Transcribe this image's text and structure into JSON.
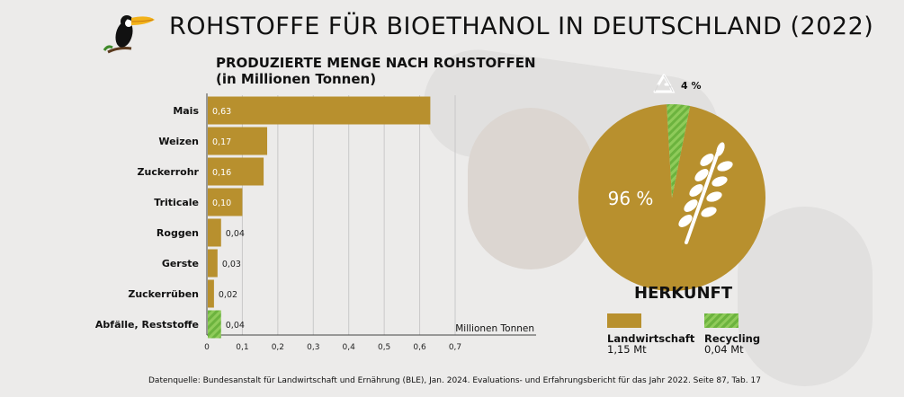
{
  "title": "ROHSTOFFE FÜR BIOETHANOL IN DEUTSCHLAND (2022)",
  "subtitle_line1": "PRODUZIERTE MENGE NACH ROHSTOFFEN",
  "subtitle_line2": "(in Millionen Tonnen)",
  "source": "Datenquelle: Bundesanstalt für Landwirtschaft und Ernährung (BLE), Jan. 2024. Evaluations- und Erfahrungsbericht für das Jahr 2022. Seite 87, Tab. 17",
  "colors": {
    "gold": "#b8902e",
    "green": "#6cb33e",
    "green_light": "#8fcb5a"
  },
  "icons": [
    "toucan-logo-icon",
    "recycle-icon",
    "wheat-icon"
  ],
  "chart_data": [
    {
      "type": "bar",
      "orientation": "horizontal",
      "categories": [
        "Mais",
        "Weizen",
        "Zuckerrohr",
        "Triticale",
        "Roggen",
        "Gerste",
        "Zuckerrüben",
        "Abfälle, Reststoffe"
      ],
      "values": [
        0.63,
        0.17,
        0.16,
        0.1,
        0.04,
        0.03,
        0.02,
        0.04
      ],
      "value_labels": [
        "0,63",
        "0,17",
        "0,16",
        "0,10",
        "0,04",
        "0,03",
        "0,02",
        "0,04"
      ],
      "bar_styles": [
        "gold",
        "gold",
        "gold",
        "gold",
        "gold",
        "gold",
        "gold",
        "green-hatched"
      ],
      "xlabel": "Millionen Tonnen",
      "xlim": [
        0,
        0.7
      ],
      "xticks": [
        0,
        0.1,
        0.2,
        0.3,
        0.4,
        0.5,
        0.6,
        0.7
      ],
      "xtick_labels": [
        "0",
        "0,1",
        "0,2",
        "0,3",
        "0,4",
        "0,5",
        "0,6",
        "0,7"
      ],
      "grid": "vertical"
    },
    {
      "type": "pie",
      "title": "HERKUNFT",
      "slices": [
        {
          "name": "Landwirtschaft",
          "percent": 96,
          "label": "96 %",
          "amount": "1,15 Mt",
          "style": "gold"
        },
        {
          "name": "Recycling",
          "percent": 4,
          "label": "4 %",
          "amount": "0,04 Mt",
          "style": "green-hatched"
        }
      ]
    }
  ]
}
